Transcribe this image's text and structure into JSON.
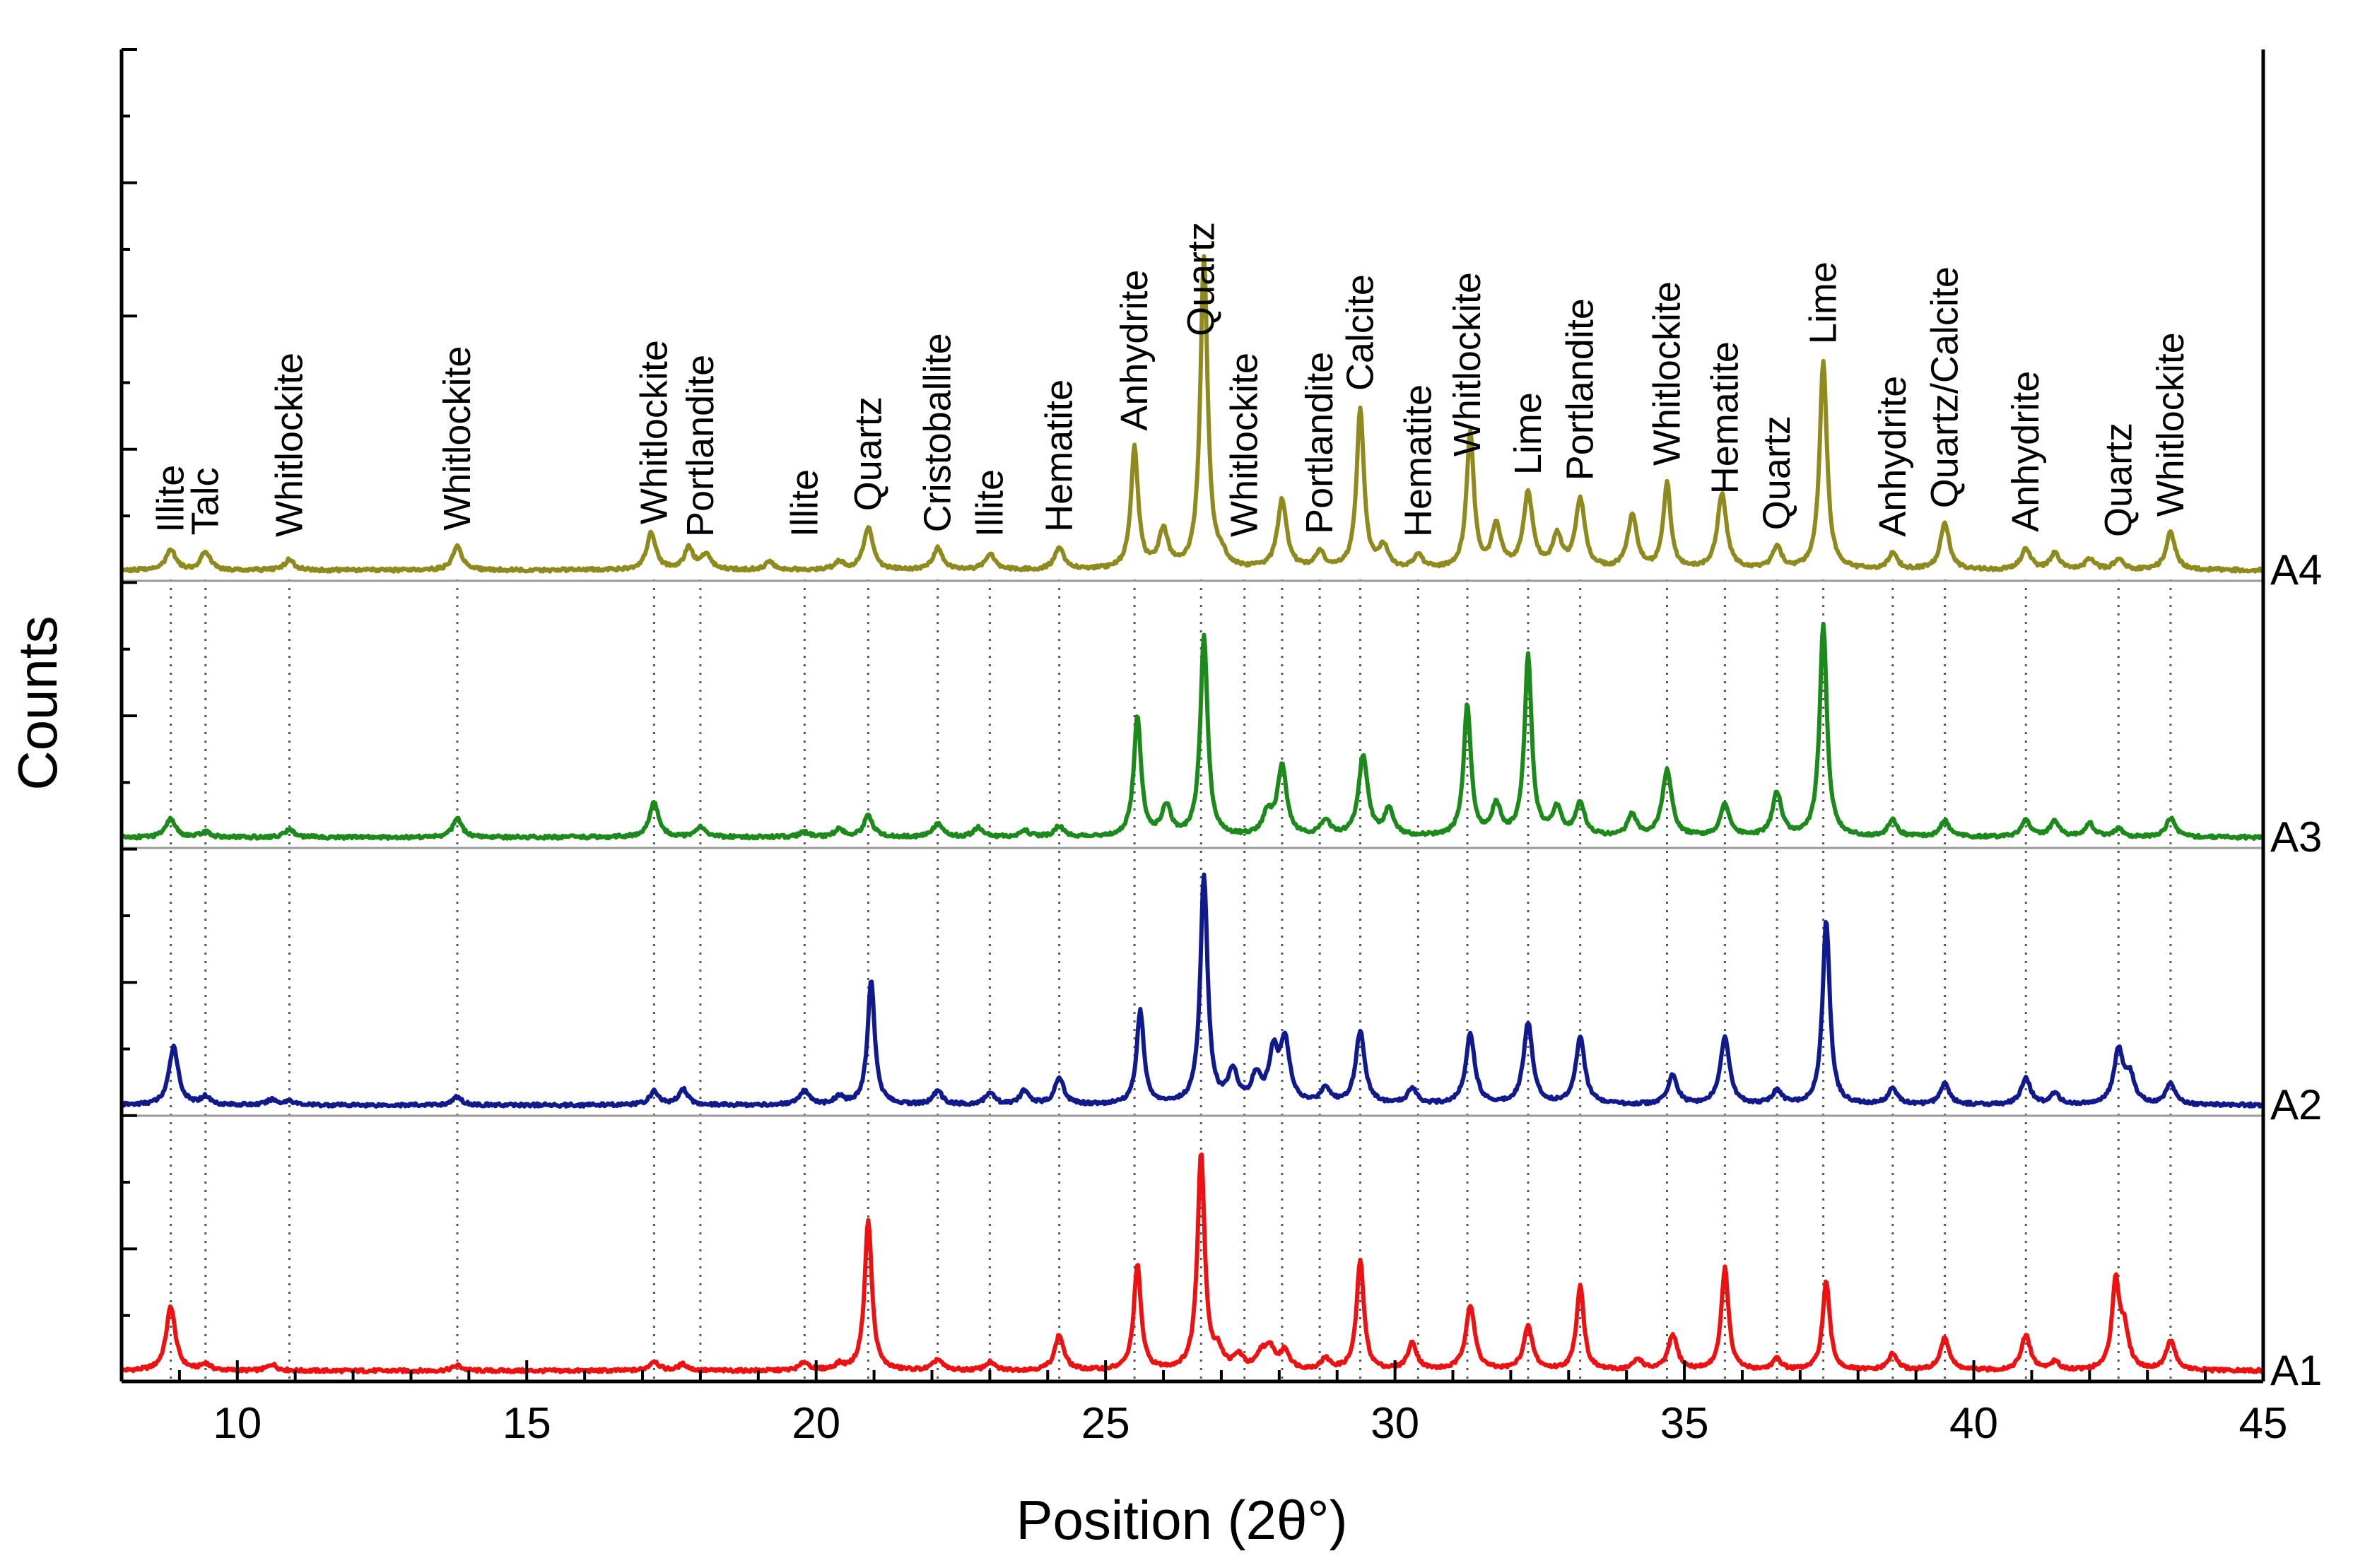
{
  "chart_data": {
    "type": "line",
    "title": "",
    "xlabel": "Position (2θ°)",
    "ylabel": "Counts",
    "xlim": [
      8,
      45
    ],
    "xticks": [
      10,
      15,
      20,
      25,
      30,
      35,
      40,
      45
    ],
    "grid": false,
    "stacked": true,
    "series": [
      {
        "name": "A1",
        "color": "#ee1111",
        "baseline": 15,
        "peaks": [
          [
            8.85,
            120
          ],
          [
            9.45,
            12
          ],
          [
            10.6,
            12
          ],
          [
            13.8,
            10
          ],
          [
            17.2,
            18
          ],
          [
            17.7,
            12
          ],
          [
            19.8,
            15
          ],
          [
            20.4,
            10
          ],
          [
            20.9,
            280
          ],
          [
            22.1,
            20
          ],
          [
            23.0,
            15
          ],
          [
            24.2,
            65
          ],
          [
            25.55,
            195
          ],
          [
            26.65,
            405
          ],
          [
            26.95,
            30
          ],
          [
            27.3,
            25
          ],
          [
            27.7,
            30
          ],
          [
            27.85,
            35
          ],
          [
            28.1,
            35
          ],
          [
            28.8,
            20
          ],
          [
            29.4,
            205
          ],
          [
            30.3,
            50
          ],
          [
            31.3,
            120
          ],
          [
            32.3,
            80
          ],
          [
            33.2,
            160
          ],
          [
            34.2,
            20
          ],
          [
            34.8,
            65
          ],
          [
            35.7,
            190
          ],
          [
            36.6,
            20
          ],
          [
            37.45,
            165
          ],
          [
            38.6,
            30
          ],
          [
            39.5,
            60
          ],
          [
            40.9,
            65
          ],
          [
            41.4,
            15
          ],
          [
            42.45,
            160
          ],
          [
            42.6,
            70
          ],
          [
            43.4,
            55
          ]
        ]
      },
      {
        "name": "A2",
        "color": "#101a8c",
        "baseline": 15,
        "peaks": [
          [
            8.9,
            110
          ],
          [
            9.45,
            15
          ],
          [
            10.6,
            10
          ],
          [
            10.9,
            8
          ],
          [
            13.8,
            15
          ],
          [
            17.2,
            25
          ],
          [
            17.7,
            30
          ],
          [
            19.8,
            25
          ],
          [
            20.4,
            15
          ],
          [
            20.95,
            230
          ],
          [
            22.1,
            25
          ],
          [
            23.0,
            22
          ],
          [
            23.6,
            25
          ],
          [
            24.2,
            50
          ],
          [
            25.6,
            175
          ],
          [
            26.7,
            425
          ],
          [
            27.2,
            60
          ],
          [
            27.6,
            50
          ],
          [
            27.9,
            90
          ],
          [
            28.1,
            115
          ],
          [
            28.8,
            30
          ],
          [
            29.4,
            135
          ],
          [
            30.3,
            30
          ],
          [
            31.3,
            130
          ],
          [
            32.3,
            150
          ],
          [
            33.2,
            125
          ],
          [
            34.8,
            55
          ],
          [
            35.7,
            125
          ],
          [
            36.6,
            25
          ],
          [
            37.45,
            345
          ],
          [
            38.6,
            30
          ],
          [
            39.5,
            40
          ],
          [
            40.9,
            50
          ],
          [
            41.4,
            20
          ],
          [
            42.5,
            100
          ],
          [
            42.7,
            50
          ],
          [
            43.4,
            40
          ]
        ]
      },
      {
        "name": "A3",
        "color": "#1b8a1b",
        "baseline": 15,
        "peaks": [
          [
            8.85,
            35
          ],
          [
            9.45,
            10
          ],
          [
            10.9,
            15
          ],
          [
            13.8,
            35
          ],
          [
            17.2,
            65
          ],
          [
            18.0,
            20
          ],
          [
            19.8,
            10
          ],
          [
            20.4,
            15
          ],
          [
            20.9,
            40
          ],
          [
            22.1,
            25
          ],
          [
            22.8,
            18
          ],
          [
            23.6,
            12
          ],
          [
            24.2,
            20
          ],
          [
            25.55,
            225
          ],
          [
            26.05,
            55
          ],
          [
            26.7,
            375
          ],
          [
            27.8,
            40
          ],
          [
            28.05,
            130
          ],
          [
            28.8,
            30
          ],
          [
            29.45,
            150
          ],
          [
            29.9,
            50
          ],
          [
            31.25,
            245
          ],
          [
            31.75,
            55
          ],
          [
            32.3,
            335
          ],
          [
            32.8,
            50
          ],
          [
            33.2,
            60
          ],
          [
            34.1,
            40
          ],
          [
            34.7,
            125
          ],
          [
            35.7,
            60
          ],
          [
            36.6,
            80
          ],
          [
            37.4,
            395
          ],
          [
            38.6,
            30
          ],
          [
            39.5,
            30
          ],
          [
            40.9,
            30
          ],
          [
            41.4,
            30
          ],
          [
            42.0,
            25
          ],
          [
            42.5,
            15
          ],
          [
            43.4,
            35
          ]
        ]
      },
      {
        "name": "A4",
        "color": "#8f8a1e",
        "baseline": 15,
        "peaks": [
          [
            8.85,
            40
          ],
          [
            9.45,
            35
          ],
          [
            10.9,
            20
          ],
          [
            13.8,
            45
          ],
          [
            17.15,
            70
          ],
          [
            17.8,
            40
          ],
          [
            18.1,
            30
          ],
          [
            19.2,
            15
          ],
          [
            20.4,
            15
          ],
          [
            20.9,
            80
          ],
          [
            22.1,
            40
          ],
          [
            23.0,
            30
          ],
          [
            24.2,
            40
          ],
          [
            25.5,
            225
          ],
          [
            26.0,
            70
          ],
          [
            26.7,
            580
          ],
          [
            27.0,
            20
          ],
          [
            28.05,
            130
          ],
          [
            28.7,
            30
          ],
          [
            29.4,
            300
          ],
          [
            29.8,
            40
          ],
          [
            30.4,
            25
          ],
          [
            31.3,
            255
          ],
          [
            31.75,
            80
          ],
          [
            32.3,
            140
          ],
          [
            32.8,
            60
          ],
          [
            33.2,
            130
          ],
          [
            34.1,
            100
          ],
          [
            34.7,
            160
          ],
          [
            35.65,
            140
          ],
          [
            36.6,
            40
          ],
          [
            37.4,
            390
          ],
          [
            38.6,
            30
          ],
          [
            39.5,
            85
          ],
          [
            40.9,
            40
          ],
          [
            41.4,
            30
          ],
          [
            42.0,
            20
          ],
          [
            42.5,
            20
          ],
          [
            43.4,
            70
          ]
        ]
      }
    ],
    "reference_lines": [
      8.85,
      9.45,
      10.9,
      13.8,
      17.2,
      18.0,
      19.8,
      20.9,
      22.1,
      23.0,
      24.2,
      25.5,
      26.65,
      27.4,
      28.05,
      28.7,
      29.4,
      30.4,
      31.25,
      32.3,
      33.2,
      34.7,
      35.7,
      36.6,
      37.4,
      38.6,
      39.5,
      40.9,
      42.5,
      43.4
    ],
    "annotations": [
      {
        "text": "Illite",
        "x": 8.85
      },
      {
        "text": "Talc",
        "x": 9.45
      },
      {
        "text": "Whitlockite",
        "x": 10.9
      },
      {
        "text": "Whitlockite",
        "x": 13.8
      },
      {
        "text": "Whitlockite",
        "x": 17.2
      },
      {
        "text": "Portlandite",
        "x": 18.0
      },
      {
        "text": "Illite",
        "x": 19.8
      },
      {
        "text": "Quartz",
        "x": 20.9
      },
      {
        "text": "Cristoballite",
        "x": 22.1
      },
      {
        "text": "Illite",
        "x": 23.0
      },
      {
        "text": "Hematite",
        "x": 24.2
      },
      {
        "text": "Anhydrite",
        "x": 25.5
      },
      {
        "text": "Quartz",
        "x": 26.65
      },
      {
        "text": "Whitlockite",
        "x": 27.4
      },
      {
        "text": "Portlandite",
        "x": 28.7
      },
      {
        "text": "Calcite",
        "x": 29.4
      },
      {
        "text": "Hematite",
        "x": 30.4
      },
      {
        "text": "Whitlockite",
        "x": 31.25
      },
      {
        "text": "Lime",
        "x": 32.3
      },
      {
        "text": "Portlandite",
        "x": 33.2
      },
      {
        "text": "Whitlockite",
        "x": 34.7
      },
      {
        "text": "Hematite",
        "x": 35.7
      },
      {
        "text": "Quartz",
        "x": 36.6
      },
      {
        "text": "Lime",
        "x": 37.4
      },
      {
        "text": "Anhydrite",
        "x": 38.6
      },
      {
        "text": "Quartz/Calcite",
        "x": 39.5
      },
      {
        "text": "Anhydrite",
        "x": 40.9
      },
      {
        "text": "Quartz",
        "x": 42.5
      },
      {
        "text": "Whitlockite",
        "x": 43.4
      }
    ]
  }
}
